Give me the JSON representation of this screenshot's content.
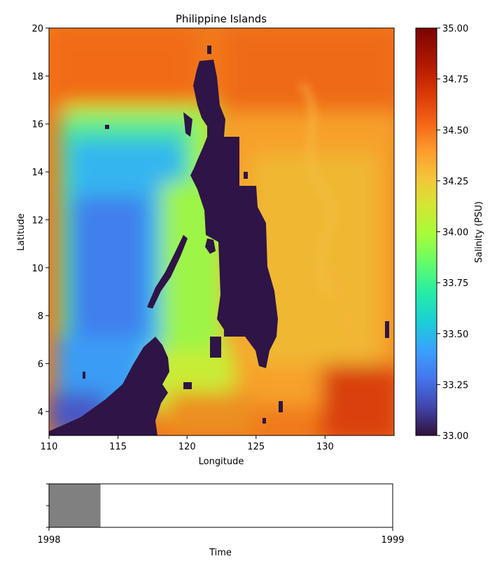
{
  "chart_data": [
    {
      "type": "heatmap",
      "title": "Philippine Islands",
      "xlabel": "Longitude",
      "ylabel": "Latitude",
      "xlim": [
        110,
        135
      ],
      "ylim": [
        3,
        20
      ],
      "xticks": [
        110,
        115,
        120,
        125,
        130
      ],
      "yticks": [
        4,
        6,
        8,
        10,
        12,
        14,
        16,
        18,
        20
      ],
      "colorbar": {
        "label": "Salinity (PSU)",
        "range": [
          33.0,
          35.0
        ],
        "ticks": [
          "33.00",
          "33.25",
          "33.50",
          "33.75",
          "34.00",
          "34.25",
          "34.50",
          "34.75",
          "35.00"
        ],
        "colormap": "turbo",
        "land_color": "#2e1447"
      },
      "grid": false
    },
    {
      "type": "bar",
      "xlabel": "Time",
      "xlim": [
        "1998",
        "1999"
      ],
      "xticks": [
        "1998",
        "1999"
      ],
      "progress_fraction": 0.15,
      "fill_color": "#808080"
    }
  ]
}
